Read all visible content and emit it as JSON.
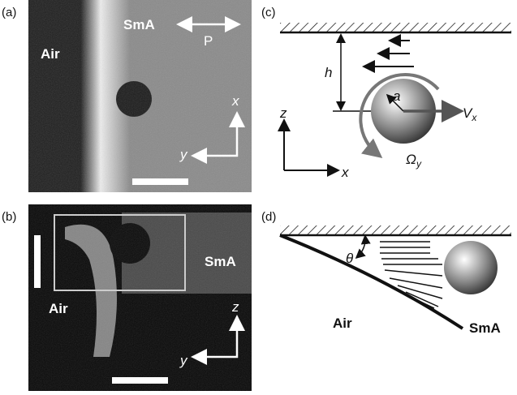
{
  "panels": [
    {
      "label": "(a)",
      "texts": [
        "Air",
        "SmA",
        "P",
        "x",
        "y"
      ]
    },
    {
      "label": "(b)",
      "texts": [
        "SmA",
        "Air",
        "z",
        "y"
      ]
    },
    {
      "label": "(c)",
      "texts": [
        "h",
        "a",
        "z",
        "x"
      ],
      "velocity": {
        "symbol": "V",
        "subscript": "x"
      },
      "rotation": {
        "symbol": "Ω",
        "subscript": "y"
      }
    },
    {
      "label": "(d)",
      "texts": [
        "θ",
        "Air",
        "SmA"
      ]
    }
  ]
}
